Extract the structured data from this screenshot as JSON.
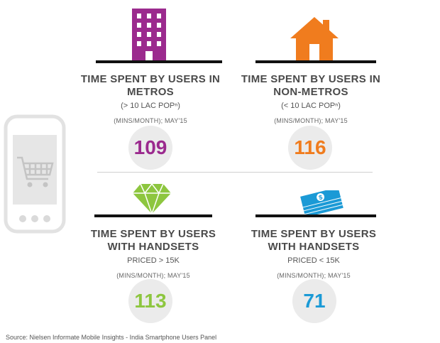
{
  "panels": [
    {
      "title": "TIME SPENT BY USERS IN METROS",
      "title_line1": "TIME SPENT BY USERS IN",
      "title_line2": "METROS",
      "subtitle": "(> 10 LAC POPⁿ)",
      "unit": "(MINS/MONTH); MAY'15",
      "value": "109",
      "color": "#9b2a8e",
      "icon": "building-icon"
    },
    {
      "title": "TIME SPENT BY USERS IN NON-METROS",
      "title_line1": "TIME SPENT BY USERS IN",
      "title_line2": "NON-METROS",
      "subtitle": "(< 10 LAC POPⁿ)",
      "unit": "(MINS/MONTH); MAY'15",
      "value": "116",
      "color": "#f07c1e",
      "icon": "house-icon"
    },
    {
      "title": "TIME SPENT BY USERS WITH HANDSETS",
      "title_line1": "TIME SPENT BY USERS",
      "title_line2": "WITH HANDSETS",
      "subtitle": "PRICED > 15K",
      "unit": "(MINS/MONTH); MAY'15",
      "value": "113",
      "color": "#8dc63f",
      "icon": "diamond-icon"
    },
    {
      "title": "TIME SPENT BY USERS WITH HANDSETS",
      "title_line1": "TIME SPENT BY USERS",
      "title_line2": "WITH HANDSETS",
      "subtitle": "PRICED < 15K",
      "unit": "(MINS/MONTH); MAY'15",
      "value": "71",
      "color": "#1b9ad6",
      "icon": "money-icon"
    }
  ],
  "source": "Source: Nielsen Informate Mobile Insights - India Smartphone Users Panel",
  "decor": {
    "phone_icon": "shopping-cart-phone-icon"
  }
}
